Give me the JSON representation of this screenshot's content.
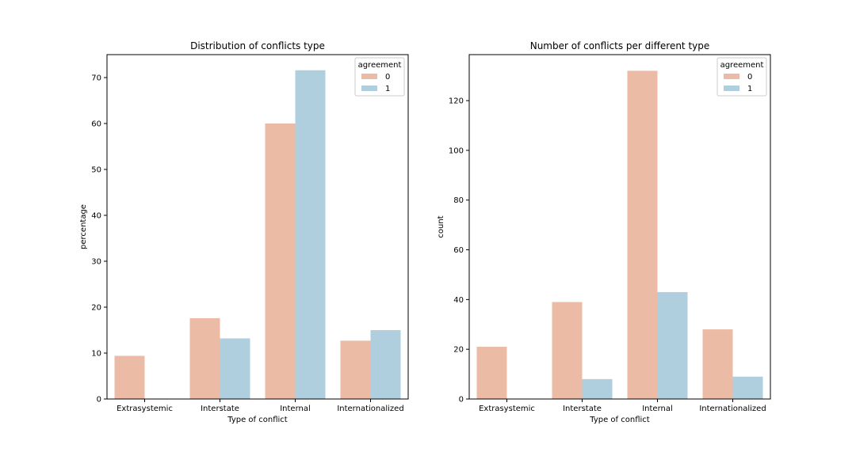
{
  "chart_data": [
    {
      "type": "bar",
      "title": "Distribution of conflicts type",
      "xlabel": "Type of conflict",
      "ylabel": "percentage",
      "categories": [
        "Extrasystemic",
        "Interstate",
        "Internal",
        "Internationalized"
      ],
      "series": [
        {
          "name": "0",
          "values": [
            9.4,
            17.6,
            60.0,
            12.7
          ]
        },
        {
          "name": "1",
          "values": [
            0,
            13.2,
            71.6,
            15.0
          ]
        }
      ],
      "yticks": [
        0,
        10,
        20,
        30,
        40,
        50,
        60,
        70
      ],
      "ylim": [
        0,
        75
      ],
      "legend": {
        "title": "agreement",
        "position": "top-right"
      },
      "grid": false
    },
    {
      "type": "bar",
      "title": "Number of conflicts per different type",
      "xlabel": "Type of conflict",
      "ylabel": "count",
      "categories": [
        "Extrasystemic",
        "Interstate",
        "Internal",
        "Internationalized"
      ],
      "series": [
        {
          "name": "0",
          "values": [
            21,
            39,
            132,
            28
          ]
        },
        {
          "name": "1",
          "values": [
            0,
            8,
            43,
            9
          ]
        }
      ],
      "yticks": [
        0,
        20,
        40,
        60,
        80,
        100,
        120
      ],
      "ylim": [
        0,
        138.5
      ],
      "legend": {
        "title": "agreement",
        "position": "top-right"
      },
      "grid": false
    }
  ],
  "colors": {
    "series_0": "#EBBBA5",
    "series_1": "#AFCFDF",
    "axis": "#000000"
  }
}
